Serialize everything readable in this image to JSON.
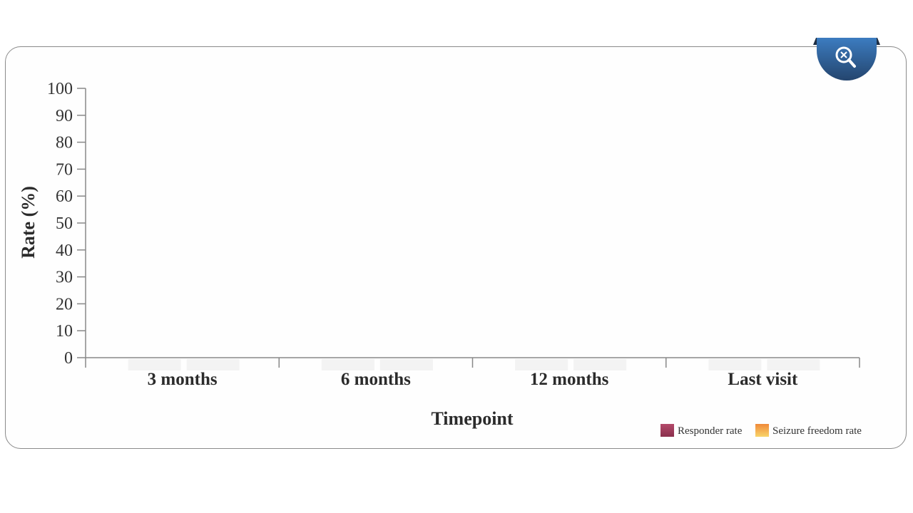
{
  "chart_data": {
    "type": "bar",
    "categories": [
      "3 months",
      "6 months",
      "12 months",
      "Last visit"
    ],
    "series": [
      {
        "name": "Responder rate",
        "color": "#9e3a5a",
        "values": [
          0,
          0,
          0,
          0
        ]
      },
      {
        "name": "Seizure freedom rate",
        "color": "#f2b04a",
        "values": [
          0,
          0,
          0,
          0
        ]
      }
    ],
    "xlabel": "Timepoint",
    "ylabel": "Rate (%)",
    "ylim": [
      0,
      100
    ],
    "yticks": [
      0,
      10,
      20,
      30,
      40,
      50,
      60,
      70,
      80,
      90,
      100
    ],
    "legend_position": "bottom-right",
    "grid": false
  },
  "icons": {
    "zoom": "zoom-reset-icon"
  }
}
